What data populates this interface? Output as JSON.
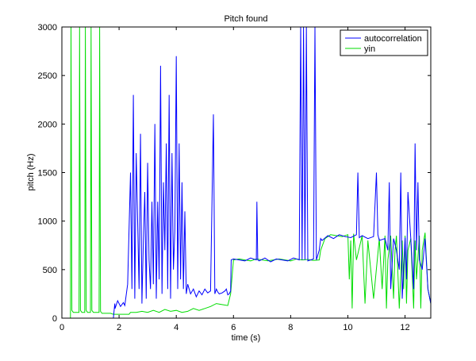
{
  "chart_data": {
    "type": "line",
    "title": "Pitch found",
    "xlabel": "time (s)",
    "ylabel": "pitch (Hz)",
    "xlim": [
      0,
      12.9
    ],
    "ylim": [
      0,
      3000
    ],
    "xticks": [
      0,
      2,
      4,
      6,
      8,
      10,
      12
    ],
    "xtick_labels": [
      "0",
      "2",
      "4",
      "6",
      "8",
      "10",
      "12"
    ],
    "yticks": [
      0,
      500,
      1000,
      1500,
      2000,
      2500,
      3000
    ],
    "ytick_labels": [
      "0",
      "500",
      "1000",
      "1500",
      "2000",
      "2500",
      "3000"
    ],
    "grid": false,
    "legend": "top-right",
    "series": [
      {
        "name": "autocorrelation",
        "color": "#0000ff",
        "x": [
          0.3,
          1.8,
          1.85,
          1.86,
          1.95,
          2.05,
          2.15,
          2.2,
          2.3,
          2.4,
          2.45,
          2.5,
          2.55,
          2.6,
          2.65,
          2.7,
          2.75,
          2.8,
          2.85,
          2.9,
          2.95,
          3.0,
          3.05,
          3.1,
          3.15,
          3.2,
          3.25,
          3.3,
          3.35,
          3.4,
          3.45,
          3.5,
          3.55,
          3.6,
          3.65,
          3.7,
          3.75,
          3.8,
          3.85,
          3.9,
          3.95,
          4.0,
          4.05,
          4.1,
          4.15,
          4.2,
          4.25,
          4.3,
          4.35,
          4.4,
          4.5,
          4.6,
          4.7,
          4.8,
          4.9,
          5.0,
          5.1,
          5.2,
          5.3,
          5.35,
          5.4,
          5.45,
          5.5,
          5.6,
          5.7,
          5.75,
          5.8,
          5.85,
          5.9,
          5.92,
          6.0,
          6.2,
          6.4,
          6.6,
          6.8,
          6.82,
          6.85,
          6.9,
          7.1,
          7.3,
          7.5,
          7.7,
          7.9,
          8.1,
          8.3,
          8.35,
          8.4,
          8.45,
          8.5,
          8.55,
          8.6,
          8.8,
          8.85,
          8.9,
          9.0,
          9.05,
          9.1,
          9.3,
          9.5,
          9.7,
          9.9,
          10.1,
          10.3,
          10.35,
          10.4,
          10.5,
          10.7,
          10.9,
          11.0,
          11.05,
          11.1,
          11.3,
          11.4,
          11.45,
          11.5,
          11.6,
          11.7,
          11.8,
          11.85,
          11.9,
          12.0,
          12.05,
          12.1,
          12.2,
          12.3,
          12.35,
          12.4,
          12.45,
          12.5,
          12.6,
          12.7,
          12.8,
          12.9
        ],
        "y": [
          0,
          0,
          150,
          100,
          180,
          120,
          160,
          130,
          350,
          1500,
          300,
          2300,
          200,
          1700,
          1000,
          300,
          1900,
          150,
          800,
          1300,
          200,
          1600,
          600,
          300,
          1200,
          350,
          2000,
          200,
          1200,
          400,
          2600,
          250,
          1400,
          700,
          1800,
          300,
          2300,
          200,
          1700,
          500,
          900,
          2700,
          300,
          1800,
          400,
          1400,
          300,
          1100,
          250,
          350,
          250,
          300,
          220,
          280,
          240,
          300,
          260,
          280,
          2100,
          250,
          300,
          270,
          250,
          260,
          280,
          300,
          240,
          250,
          280,
          600,
          610,
          600,
          590,
          620,
          600,
          1200,
          600,
          590,
          620,
          580,
          610,
          600,
          590,
          620,
          600,
          3000,
          600,
          3000,
          600,
          3000,
          590,
          610,
          3000,
          600,
          700,
          820,
          800,
          850,
          820,
          860,
          840,
          830,
          860,
          1500,
          830,
          850,
          820,
          840,
          1500,
          860,
          800,
          820,
          700,
          1400,
          300,
          820,
          700,
          500,
          1500,
          200,
          830,
          400,
          1300,
          820,
          300,
          1800,
          700,
          1400,
          600,
          500,
          820,
          300,
          150
        ]
      },
      {
        "name": "yin",
        "color": "#00dd00",
        "x": [
          0.0,
          0.3,
          0.32,
          0.35,
          0.4,
          0.6,
          0.62,
          0.65,
          0.7,
          0.8,
          0.82,
          0.85,
          0.9,
          1.0,
          1.02,
          1.05,
          1.1,
          1.3,
          1.32,
          1.35,
          1.4,
          1.7,
          1.8,
          2.0,
          2.2,
          2.3,
          2.35,
          2.4,
          2.6,
          2.8,
          3.0,
          3.2,
          3.4,
          3.6,
          3.8,
          4.0,
          4.2,
          4.4,
          4.6,
          4.8,
          5.0,
          5.2,
          5.4,
          5.6,
          5.8,
          5.9,
          6.0,
          6.2,
          6.4,
          6.6,
          6.8,
          7.0,
          7.2,
          7.4,
          7.6,
          7.8,
          8.0,
          8.2,
          8.4,
          8.6,
          8.8,
          9.0,
          9.05,
          9.2,
          9.4,
          9.6,
          9.8,
          10.0,
          10.05,
          10.1,
          10.15,
          10.2,
          10.3,
          10.5,
          10.6,
          10.7,
          10.9,
          11.1,
          11.2,
          11.3,
          11.35,
          11.4,
          11.5,
          11.6,
          11.65,
          11.7,
          11.8,
          11.9,
          11.95,
          12.0,
          12.05,
          12.1,
          12.2,
          12.3,
          12.35,
          12.4,
          12.5,
          12.55,
          12.6,
          12.7,
          12.8,
          12.9
        ],
        "y": [
          0,
          0,
          3000,
          80,
          60,
          60,
          3000,
          80,
          60,
          60,
          3000,
          80,
          60,
          60,
          3000,
          80,
          60,
          60,
          3000,
          70,
          50,
          50,
          40,
          40,
          40,
          40,
          40,
          60,
          60,
          70,
          60,
          80,
          60,
          90,
          70,
          80,
          60,
          70,
          100,
          80,
          100,
          120,
          150,
          140,
          130,
          250,
          600,
          610,
          600,
          590,
          610,
          600,
          590,
          600,
          610,
          600,
          590,
          610,
          600,
          605,
          595,
          600,
          700,
          820,
          860,
          850,
          840,
          860,
          400,
          800,
          100,
          870,
          600,
          850,
          150,
          800,
          200,
          820,
          300,
          850,
          100,
          600,
          850,
          200,
          700,
          850,
          100,
          800,
          300,
          850,
          150,
          700,
          820,
          100,
          800,
          400,
          850,
          100,
          700,
          880,
          300,
          150
        ]
      }
    ]
  }
}
